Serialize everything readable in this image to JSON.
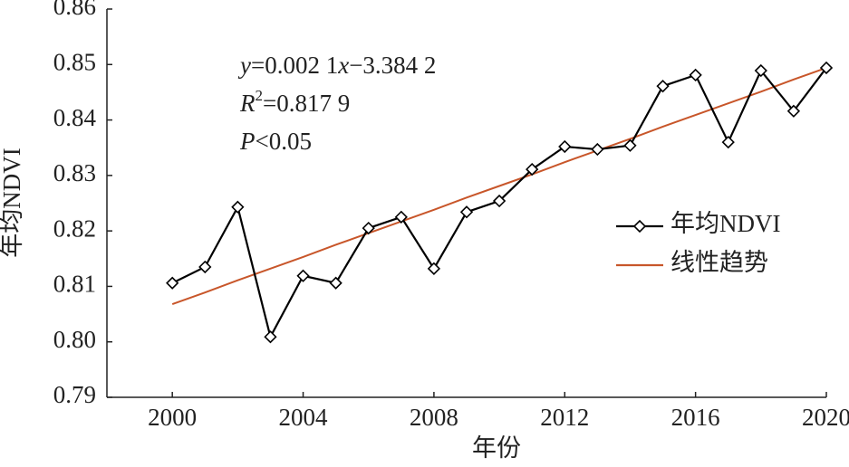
{
  "chart_data": {
    "type": "line",
    "x_label": "年份",
    "y_label": "年均NDVI",
    "x": [
      2000,
      2001,
      2002,
      2003,
      2004,
      2005,
      2006,
      2007,
      2008,
      2009,
      2010,
      2011,
      2012,
      2013,
      2014,
      2015,
      2016,
      2017,
      2018,
      2019,
      2020
    ],
    "series": [
      {
        "name": "年均NDVI",
        "color": "#000000",
        "marker": "diamond",
        "values": [
          0.8106,
          0.8135,
          0.8243,
          0.8009,
          0.8119,
          0.8106,
          0.8205,
          0.8225,
          0.8132,
          0.8234,
          0.8254,
          0.8311,
          0.8352,
          0.8347,
          0.8354,
          0.8461,
          0.8481,
          0.836,
          0.8489,
          0.8416,
          0.8494
        ]
      },
      {
        "name": "线性趋势",
        "color": "#c8562a",
        "values": [
          0.8068,
          0.8089,
          0.8111,
          0.8132,
          0.8153,
          0.8175,
          0.8196,
          0.8217,
          0.8238,
          0.826,
          0.8281,
          0.8302,
          0.8324,
          0.8345,
          0.8366,
          0.8388,
          0.8409,
          0.843,
          0.8451,
          0.8473,
          0.8494
        ]
      }
    ],
    "xlim": [
      1998,
      2020
    ],
    "xticks": [
      2000,
      2004,
      2008,
      2012,
      2016,
      2020
    ],
    "ylim": [
      0.79,
      0.86
    ],
    "yticks": [
      0.79,
      {
        "value": 0.8,
        "label": "0.80"
      },
      0.81,
      0.82,
      0.83,
      0.84,
      0.85,
      0.86
    ],
    "legend": "right",
    "annotations": [
      [
        {
          "text": "y",
          "italic": true
        },
        {
          "text": "=0.002 1"
        },
        {
          "text": "x",
          "italic": true
        },
        {
          "text": "−3.384 2"
        }
      ],
      [
        {
          "text": "R",
          "italic": true
        },
        {
          "text": "2",
          "sup": true
        },
        {
          "text": "=0.817 9"
        }
      ],
      [
        {
          "text": "P",
          "italic": true
        },
        {
          "text": "<0.05"
        }
      ]
    ]
  }
}
